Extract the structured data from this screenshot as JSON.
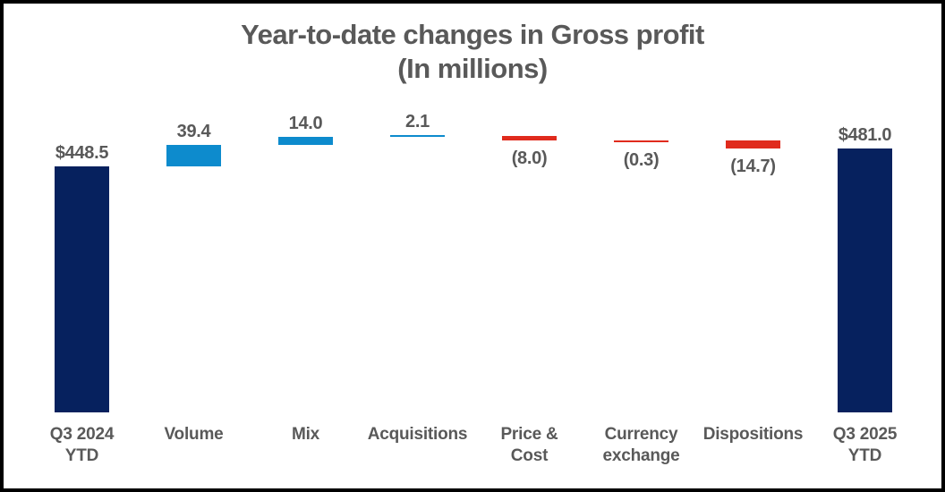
{
  "chart_data": {
    "type": "waterfall",
    "title": "Year-to-date changes in Gross profit",
    "subtitle": "(In millions)",
    "grid": false,
    "legend": false,
    "axes_visible": false,
    "ylim": [
      0,
      510
    ],
    "colors": {
      "total": "#06215E",
      "increase": "#0D8BCD",
      "decrease": "#E02B1D",
      "text": "#595959",
      "frame_border": "#000000",
      "background": "#ffffff"
    },
    "bars": [
      {
        "category": "Q3 2024\nYTD",
        "value": 448.5,
        "display": "$448.5",
        "kind": "total"
      },
      {
        "category": "Volume",
        "value": 39.4,
        "display": "39.4",
        "kind": "increase"
      },
      {
        "category": "Mix",
        "value": 14.0,
        "display": "14.0",
        "kind": "increase"
      },
      {
        "category": "Acquisitions",
        "value": 2.1,
        "display": "2.1",
        "kind": "increase"
      },
      {
        "category": "Price &\nCost",
        "value": -8.0,
        "display": "(8.0)",
        "kind": "decrease"
      },
      {
        "category": "Currency\nexchange",
        "value": -0.3,
        "display": "(0.3)",
        "kind": "decrease"
      },
      {
        "category": "Dispositions",
        "value": -14.7,
        "display": "(14.7)",
        "kind": "decrease"
      },
      {
        "category": "Q3 2025\nYTD",
        "value": 481.0,
        "display": "$481.0",
        "kind": "total"
      }
    ]
  }
}
